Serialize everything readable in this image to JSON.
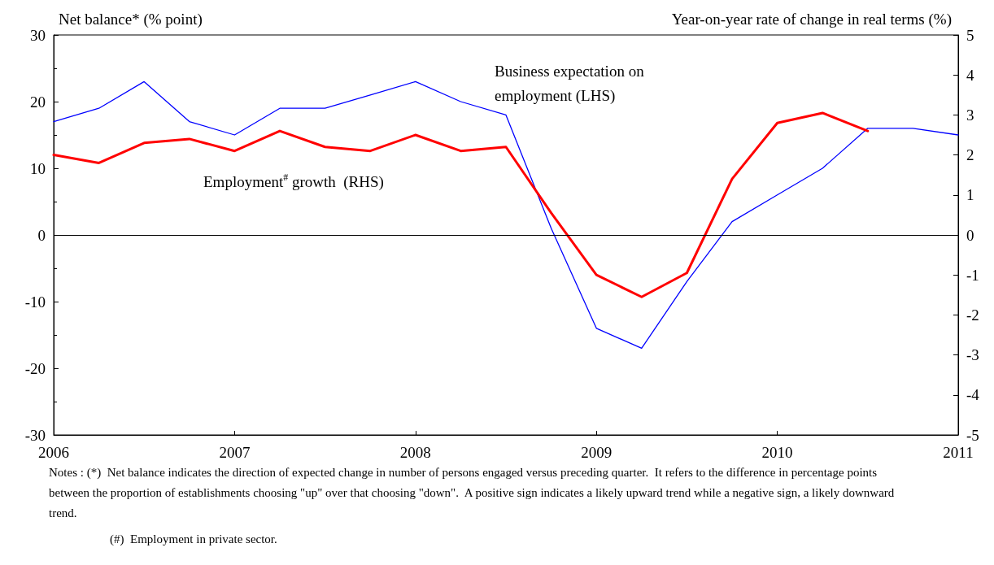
{
  "chart_data": {
    "type": "line",
    "ylabel": "Net balance* (% point)",
    "y2label": "Year-on-year rate of change in real terms (%)",
    "x": [
      2006,
      2006.25,
      2006.5,
      2006.75,
      2007,
      2007.25,
      2007.5,
      2007.75,
      2008,
      2008.25,
      2008.5,
      2008.75,
      2009,
      2009.25,
      2009.5,
      2009.75,
      2010,
      2010.25,
      2010.5,
      2010.75,
      2011
    ],
    "xlim": [
      2006,
      2011
    ],
    "xticks": [
      2006,
      2007,
      2008,
      2009,
      2010,
      2011
    ],
    "ylim": [
      -30,
      30
    ],
    "yticks": [
      -30,
      -20,
      -10,
      0,
      10,
      20,
      30
    ],
    "y2lim": [
      -5,
      5
    ],
    "y2ticks": [
      -5,
      -4,
      -3,
      -2,
      -1,
      0,
      1,
      2,
      3,
      4,
      5
    ],
    "series": [
      {
        "name": "Business expectation on employment (LHS)",
        "color": "#0000ff",
        "values": [
          17,
          19,
          23,
          17,
          15,
          19,
          19,
          21,
          23,
          20,
          18,
          1,
          -14,
          -17,
          -7,
          2,
          6,
          10,
          16,
          16,
          15
        ]
      },
      {
        "name": "Employment$^{#}$ growth  (RHS)",
        "color": "#ff0000",
        "axis": "y2",
        "values": [
          2.0,
          1.8,
          2.3,
          2.4,
          2.1,
          2.6,
          2.2,
          2.1,
          2.5,
          2.1,
          2.2,
          0.55,
          -1.0,
          -1.55,
          -0.95,
          1.4,
          2.8,
          3.05,
          2.6,
          null,
          null
        ]
      }
    ],
    "ref_lines": [
      {
        "axis": "y",
        "value": 0,
        "color": "#000000"
      }
    ],
    "annotations": [
      "Notes : (*)  Net balance indicates the direction of expected change in number of persons engaged versus preceding quarter.  It refers to the difference in percentage points  between the proportion of establishments choosing \"up\" over that choosing \"down\".  A positive sign indicates a likely upward trend while a negative sign, a likely downward trend.",
      "(#)  Employment in private sector."
    ]
  }
}
